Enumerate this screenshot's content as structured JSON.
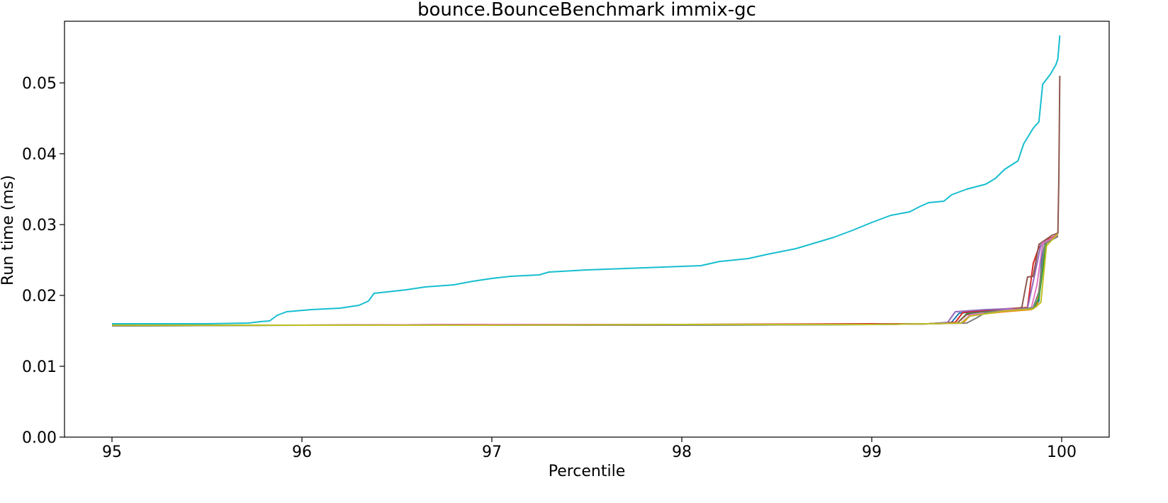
{
  "chart_data": {
    "type": "line",
    "title": "bounce.BounceBenchmark immix-gc",
    "xlabel": "Percentile",
    "ylabel": "Run time (ms)",
    "xlim": [
      94.75,
      100.25
    ],
    "ylim": [
      0.0,
      0.0587
    ],
    "xticks": [
      95,
      96,
      97,
      98,
      99,
      100
    ],
    "xtick_labels": [
      "95",
      "96",
      "97",
      "98",
      "99",
      "100"
    ],
    "yticks": [
      0.0,
      0.01,
      0.02,
      0.03,
      0.04,
      0.05
    ],
    "ytick_labels": [
      "0.00",
      "0.01",
      "0.02",
      "0.03",
      "0.04",
      "0.05"
    ],
    "grid": false,
    "legend": "none",
    "series": [
      {
        "color": "#1f77b4",
        "points": [
          [
            95.0,
            0.0158
          ],
          [
            96.0,
            0.0158
          ],
          [
            97.0,
            0.0159
          ],
          [
            98.0,
            0.0159
          ],
          [
            99.0,
            0.0159
          ],
          [
            99.3,
            0.016
          ],
          [
            99.42,
            0.0162
          ],
          [
            99.46,
            0.0175
          ],
          [
            99.6,
            0.0178
          ],
          [
            99.8,
            0.0181
          ],
          [
            99.86,
            0.0183
          ],
          [
            99.88,
            0.0192
          ],
          [
            99.9,
            0.0275
          ],
          [
            99.95,
            0.0279
          ],
          [
            99.98,
            0.0284
          ]
        ]
      },
      {
        "color": "#ff7f0e",
        "points": [
          [
            95.0,
            0.0158
          ],
          [
            96.0,
            0.0158
          ],
          [
            97.0,
            0.0158
          ],
          [
            98.0,
            0.0159
          ],
          [
            99.0,
            0.0159
          ],
          [
            99.3,
            0.016
          ],
          [
            99.48,
            0.0161
          ],
          [
            99.52,
            0.0172
          ],
          [
            99.7,
            0.0177
          ],
          [
            99.84,
            0.018
          ],
          [
            99.87,
            0.0185
          ],
          [
            99.91,
            0.0272
          ],
          [
            99.96,
            0.0281
          ],
          [
            99.98,
            0.0289
          ]
        ]
      },
      {
        "color": "#2ca02c",
        "points": [
          [
            95.0,
            0.0157
          ],
          [
            96.0,
            0.0158
          ],
          [
            97.0,
            0.0158
          ],
          [
            98.0,
            0.0158
          ],
          [
            99.0,
            0.0159
          ],
          [
            99.3,
            0.016
          ],
          [
            99.45,
            0.0161
          ],
          [
            99.5,
            0.0174
          ],
          [
            99.7,
            0.0179
          ],
          [
            99.85,
            0.0182
          ],
          [
            99.88,
            0.0196
          ],
          [
            99.92,
            0.0276
          ],
          [
            99.98,
            0.0286
          ]
        ]
      },
      {
        "color": "#d62728",
        "points": [
          [
            95.0,
            0.0158
          ],
          [
            96.0,
            0.0158
          ],
          [
            97.0,
            0.0159
          ],
          [
            98.0,
            0.0159
          ],
          [
            99.0,
            0.016
          ],
          [
            99.3,
            0.016
          ],
          [
            99.44,
            0.0162
          ],
          [
            99.48,
            0.0176
          ],
          [
            99.7,
            0.0181
          ],
          [
            99.82,
            0.0183
          ],
          [
            99.85,
            0.0245
          ],
          [
            99.88,
            0.0268
          ],
          [
            99.93,
            0.0279
          ],
          [
            99.98,
            0.0286
          ]
        ]
      },
      {
        "color": "#9467bd",
        "points": [
          [
            95.0,
            0.0158
          ],
          [
            96.0,
            0.0158
          ],
          [
            97.0,
            0.0158
          ],
          [
            98.0,
            0.0159
          ],
          [
            99.0,
            0.0159
          ],
          [
            99.3,
            0.016
          ],
          [
            99.4,
            0.0162
          ],
          [
            99.44,
            0.0177
          ],
          [
            99.6,
            0.018
          ],
          [
            99.82,
            0.0182
          ],
          [
            99.86,
            0.0232
          ],
          [
            99.89,
            0.0271
          ],
          [
            99.95,
            0.028
          ],
          [
            99.98,
            0.0284
          ]
        ]
      },
      {
        "color": "#8c564b",
        "points": [
          [
            95.0,
            0.0158
          ],
          [
            96.0,
            0.0158
          ],
          [
            97.0,
            0.0158
          ],
          [
            98.0,
            0.0159
          ],
          [
            99.0,
            0.0159
          ],
          [
            99.3,
            0.016
          ],
          [
            99.45,
            0.0161
          ],
          [
            99.5,
            0.0173
          ],
          [
            99.7,
            0.0178
          ],
          [
            99.79,
            0.0183
          ],
          [
            99.82,
            0.0226
          ],
          [
            99.85,
            0.0227
          ],
          [
            99.88,
            0.0272
          ],
          [
            99.95,
            0.0285
          ],
          [
            99.98,
            0.0288
          ],
          [
            99.985,
            0.0365
          ],
          [
            99.99,
            0.051
          ]
        ]
      },
      {
        "color": "#e377c2",
        "points": [
          [
            95.0,
            0.0158
          ],
          [
            96.0,
            0.0158
          ],
          [
            97.0,
            0.0159
          ],
          [
            98.0,
            0.0159
          ],
          [
            99.0,
            0.0159
          ],
          [
            99.3,
            0.016
          ],
          [
            99.47,
            0.0161
          ],
          [
            99.52,
            0.0173
          ],
          [
            99.7,
            0.0179
          ],
          [
            99.84,
            0.0182
          ],
          [
            99.87,
            0.0215
          ],
          [
            99.9,
            0.0274
          ],
          [
            99.96,
            0.0282
          ],
          [
            99.98,
            0.0287
          ]
        ]
      },
      {
        "color": "#7f7f7f",
        "points": [
          [
            95.0,
            0.0157
          ],
          [
            96.0,
            0.0158
          ],
          [
            97.0,
            0.0158
          ],
          [
            98.0,
            0.0158
          ],
          [
            99.0,
            0.0159
          ],
          [
            99.3,
            0.016
          ],
          [
            99.5,
            0.0161
          ],
          [
            99.55,
            0.0168
          ],
          [
            99.6,
            0.0176
          ],
          [
            99.75,
            0.0179
          ],
          [
            99.85,
            0.0183
          ],
          [
            99.88,
            0.0205
          ],
          [
            99.91,
            0.0273
          ],
          [
            99.98,
            0.0283
          ]
        ]
      },
      {
        "color": "#bcbd22",
        "points": [
          [
            95.0,
            0.0158
          ],
          [
            96.0,
            0.0158
          ],
          [
            97.0,
            0.0158
          ],
          [
            98.0,
            0.0159
          ],
          [
            99.0,
            0.0159
          ],
          [
            99.3,
            0.016
          ],
          [
            99.47,
            0.0161
          ],
          [
            99.52,
            0.0171
          ],
          [
            99.7,
            0.0178
          ],
          [
            99.85,
            0.0181
          ],
          [
            99.89,
            0.019
          ],
          [
            99.92,
            0.027
          ],
          [
            99.98,
            0.0287
          ]
        ]
      },
      {
        "color": "#17becf",
        "points": [
          [
            95.0,
            0.016
          ],
          [
            95.5,
            0.016
          ],
          [
            95.72,
            0.0161
          ],
          [
            95.78,
            0.0163
          ],
          [
            95.83,
            0.0164
          ],
          [
            95.87,
            0.0172
          ],
          [
            95.92,
            0.0177
          ],
          [
            96.05,
            0.018
          ],
          [
            96.2,
            0.0182
          ],
          [
            96.3,
            0.0186
          ],
          [
            96.35,
            0.0192
          ],
          [
            96.38,
            0.0203
          ],
          [
            96.45,
            0.0205
          ],
          [
            96.55,
            0.0208
          ],
          [
            96.65,
            0.0212
          ],
          [
            96.8,
            0.0215
          ],
          [
            96.9,
            0.022
          ],
          [
            97.0,
            0.0224
          ],
          [
            97.1,
            0.0227
          ],
          [
            97.25,
            0.0229
          ],
          [
            97.3,
            0.0233
          ],
          [
            97.5,
            0.0236
          ],
          [
            97.7,
            0.0238
          ],
          [
            97.9,
            0.024
          ],
          [
            98.1,
            0.0242
          ],
          [
            98.2,
            0.0248
          ],
          [
            98.35,
            0.0252
          ],
          [
            98.45,
            0.0258
          ],
          [
            98.6,
            0.0266
          ],
          [
            98.7,
            0.0274
          ],
          [
            98.8,
            0.0282
          ],
          [
            98.9,
            0.0292
          ],
          [
            99.0,
            0.0303
          ],
          [
            99.1,
            0.0313
          ],
          [
            99.2,
            0.0318
          ],
          [
            99.25,
            0.0325
          ],
          [
            99.3,
            0.0331
          ],
          [
            99.38,
            0.0333
          ],
          [
            99.42,
            0.0342
          ],
          [
            99.5,
            0.035
          ],
          [
            99.6,
            0.0357
          ],
          [
            99.65,
            0.0365
          ],
          [
            99.7,
            0.0378
          ],
          [
            99.77,
            0.039
          ],
          [
            99.8,
            0.0414
          ],
          [
            99.85,
            0.0436
          ],
          [
            99.88,
            0.0445
          ],
          [
            99.9,
            0.0498
          ],
          [
            99.94,
            0.0512
          ],
          [
            99.97,
            0.0526
          ],
          [
            99.98,
            0.0534
          ],
          [
            99.99,
            0.0567
          ]
        ]
      }
    ]
  }
}
